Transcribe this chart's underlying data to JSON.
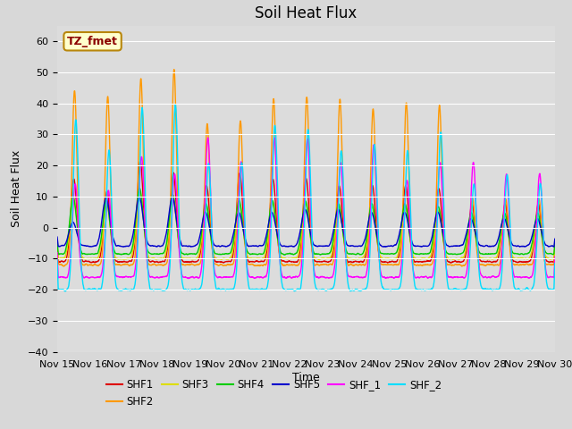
{
  "title": "Soil Heat Flux",
  "xlabel": "Time",
  "ylabel": "Soil Heat Flux",
  "ylim": [
    -40,
    65
  ],
  "yticks": [
    -40,
    -30,
    -20,
    -10,
    0,
    10,
    20,
    30,
    40,
    50,
    60
  ],
  "xlim": [
    0,
    15
  ],
  "xtick_labels": [
    "Nov 15",
    "Nov 16",
    "Nov 17",
    "Nov 18",
    "Nov 19",
    "Nov 20",
    "Nov 21",
    "Nov 22",
    "Nov 23",
    "Nov 24",
    "Nov 25",
    "Nov 26",
    "Nov 27",
    "Nov 28",
    "Nov 29",
    "Nov 30"
  ],
  "colors": {
    "SHF1": "#dd0000",
    "SHF2": "#ff9900",
    "SHF3": "#dddd00",
    "SHF4": "#00cc00",
    "SHF5": "#0000cc",
    "SHF_1": "#ff00ff",
    "SHF_2": "#00ddff"
  },
  "legend_label": "TZ_fmet",
  "background_color": "#d8d8d8",
  "plot_bg_color": "#d8d8d8",
  "title_fontsize": 12,
  "axis_label_fontsize": 9,
  "tick_fontsize": 8,
  "grid_color": "#ffffff",
  "n_points": 2880,
  "days": 15
}
